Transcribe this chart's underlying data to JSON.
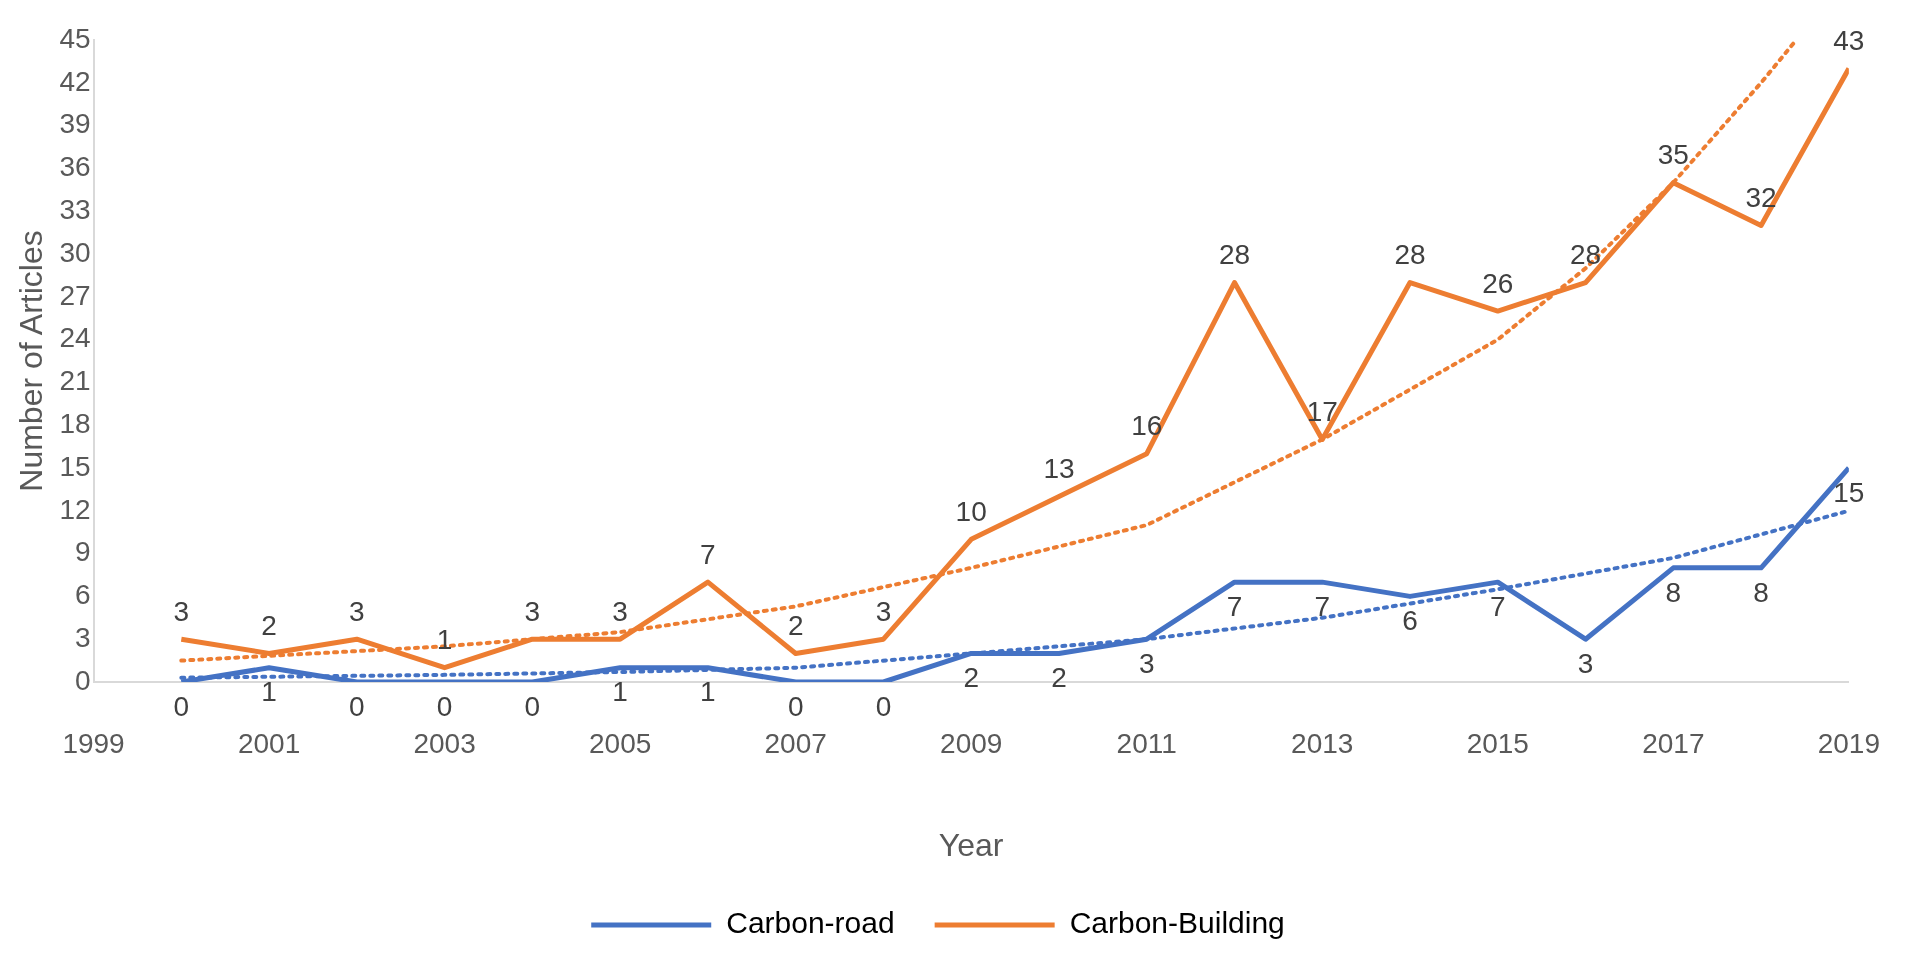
{
  "chart_data": {
    "type": "line",
    "xlabel": "Year",
    "ylabel": "Number of Articles",
    "xlim": [
      1999,
      2019
    ],
    "xticks": [
      1999,
      2001,
      2003,
      2005,
      2007,
      2009,
      2011,
      2013,
      2015,
      2017,
      2019
    ],
    "ylim": [
      0,
      45
    ],
    "yticks": [
      0,
      3,
      6,
      9,
      12,
      15,
      18,
      21,
      24,
      27,
      30,
      33,
      36,
      39,
      42,
      45
    ],
    "grid": false,
    "legend": "bottom",
    "marker": "none",
    "series": [
      {
        "name": "Carbon-road",
        "color": "#4472c4",
        "x": [
          2000,
          2001,
          2002,
          2003,
          2004,
          2005,
          2006,
          2007,
          2008,
          2009,
          2010,
          2011,
          2012,
          2013,
          2014,
          2015,
          2016,
          2017,
          2018,
          2019
        ],
        "values": [
          0,
          1,
          0,
          0,
          0,
          1,
          1,
          0,
          0,
          2,
          2,
          3,
          7,
          7,
          6,
          7,
          3,
          8,
          8,
          15
        ],
        "value_labels": [
          "0",
          "1",
          "0",
          "0",
          "0",
          "1",
          "1",
          "0",
          "0",
          "2",
          "2",
          "3",
          "7",
          "7",
          "6",
          "7",
          "3",
          "8",
          "8",
          "15"
        ],
        "line_style": "solid"
      },
      {
        "name": "Carbon-Building",
        "color": "#ed7d31",
        "x": [
          2000,
          2001,
          2002,
          2003,
          2004,
          2005,
          2006,
          2007,
          2008,
          2009,
          2010,
          2011,
          2012,
          2013,
          2014,
          2015,
          2016,
          2017,
          2018,
          2019
        ],
        "values": [
          3,
          2,
          3,
          1,
          3,
          3,
          7,
          2,
          3,
          10,
          13,
          16,
          28,
          17,
          28,
          26,
          28,
          35,
          32,
          43
        ],
        "value_labels": [
          "3",
          "2",
          "3",
          "1",
          "3",
          "3",
          "7",
          "2",
          "3",
          "10",
          "13",
          "16",
          "28",
          "17",
          "28",
          "26",
          "28",
          "35",
          "32",
          "43"
        ],
        "line_style": "solid"
      },
      {
        "type": "line",
        "color": "#4472c4",
        "line_style": "dotted",
        "x": [
          2000,
          2003,
          2005,
          2007,
          2009,
          2011,
          2013,
          2015,
          2017,
          2019
        ],
        "values": [
          0.3,
          0.5,
          0.7,
          1,
          2,
          3,
          4.5,
          6.5,
          8.7,
          12
        ]
      },
      {
        "type": "line",
        "color": "#ed7d31",
        "line_style": "dotted",
        "x": [
          2000,
          2003,
          2005,
          2007,
          2009,
          2011,
          2013,
          2015,
          2016,
          2017,
          2018,
          2018.4
        ],
        "values": [
          1.5,
          2.5,
          3.5,
          5.3,
          8,
          11,
          17,
          24,
          29,
          35,
          42,
          45
        ]
      }
    ]
  }
}
